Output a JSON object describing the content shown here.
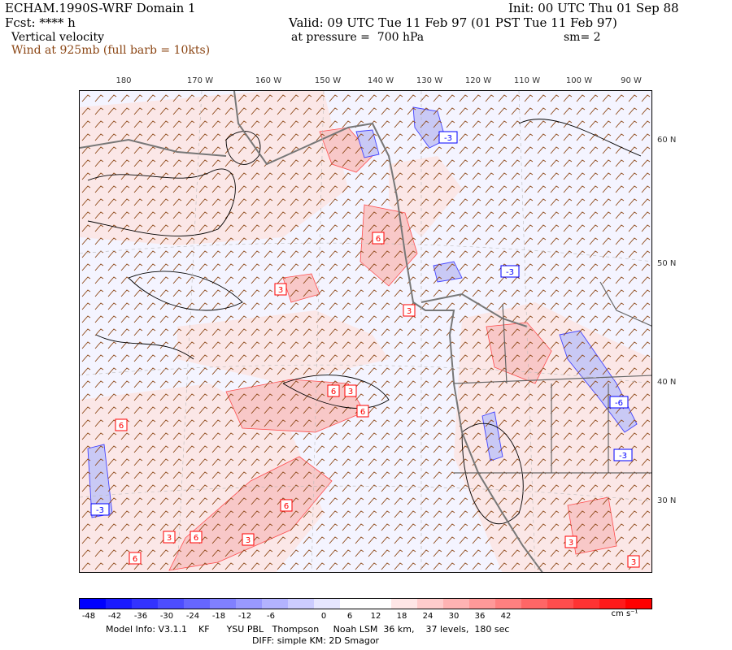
{
  "header": {
    "model_title": "ECHAM.1990S-WRF Domain 1",
    "fcst": "Fcst: **** h",
    "field": "Vertical velocity",
    "wind_note": "Wind at 925mb (full barb = 10kts)",
    "init": "Init: 00 UTC Thu 01 Sep 88",
    "valid": "Valid: 09 UTC Tue 11 Feb 97 (01 PST Tue 11 Feb 97)",
    "pressure": "at pressure =  700 hPa",
    "smooth": "sm= 2"
  },
  "longitude_labels": [
    "180",
    "170 W",
    "160 W",
    "150 W",
    "140 W",
    "130 W",
    "120 W",
    "110 W",
    "100 W",
    "90 W"
  ],
  "latitude_labels": [
    "60 N",
    "50 N",
    "40 N",
    "30 N"
  ],
  "contour_labels": [
    {
      "text": "-3",
      "sign": "neg"
    },
    {
      "text": "-3",
      "sign": "neg"
    },
    {
      "text": "-3",
      "sign": "neg"
    },
    {
      "text": "-6",
      "sign": "neg"
    },
    {
      "text": "-3",
      "sign": "neg"
    },
    {
      "text": "6",
      "sign": "pos"
    },
    {
      "text": "3",
      "sign": "pos"
    },
    {
      "text": "3",
      "sign": "pos"
    },
    {
      "text": "6",
      "sign": "pos"
    },
    {
      "text": "3",
      "sign": "pos"
    },
    {
      "text": "6",
      "sign": "pos"
    },
    {
      "text": "6",
      "sign": "pos"
    },
    {
      "text": "6",
      "sign": "pos"
    },
    {
      "text": "3",
      "sign": "pos"
    },
    {
      "text": "6",
      "sign": "pos"
    },
    {
      "text": "3",
      "sign": "pos"
    },
    {
      "text": "6",
      "sign": "pos"
    },
    {
      "text": "3",
      "sign": "pos"
    },
    {
      "text": "3",
      "sign": "pos"
    }
  ],
  "colorbar": {
    "ticks": [
      "-48",
      "-42",
      "-36",
      "-30",
      "-24",
      "-18",
      "-12",
      "-6",
      "0",
      "6",
      "12",
      "18",
      "24",
      "30",
      "36",
      "42"
    ],
    "units": "cm s⁻¹",
    "colors": [
      "#0000ff",
      "#1a1aff",
      "#3333ff",
      "#4d4dff",
      "#6666ff",
      "#8080ff",
      "#9999ff",
      "#b3b3ff",
      "#ccccff",
      "#e6e6ff",
      "#ffffff",
      "#ffffff",
      "#ffe6e6",
      "#ffcccc",
      "#ffb3b3",
      "#ff9999",
      "#ff8080",
      "#ff6666",
      "#ff4d4d",
      "#ff3333",
      "#ff1a1a",
      "#ff0000"
    ]
  },
  "footer": {
    "model_info": "Model Info: V3.1.1    KF      YSU PBL   Thompson     Noah LSM  36 km,    37 levels,  180 sec",
    "diff": "DIFF: simple KM: 2D Smagor"
  }
}
